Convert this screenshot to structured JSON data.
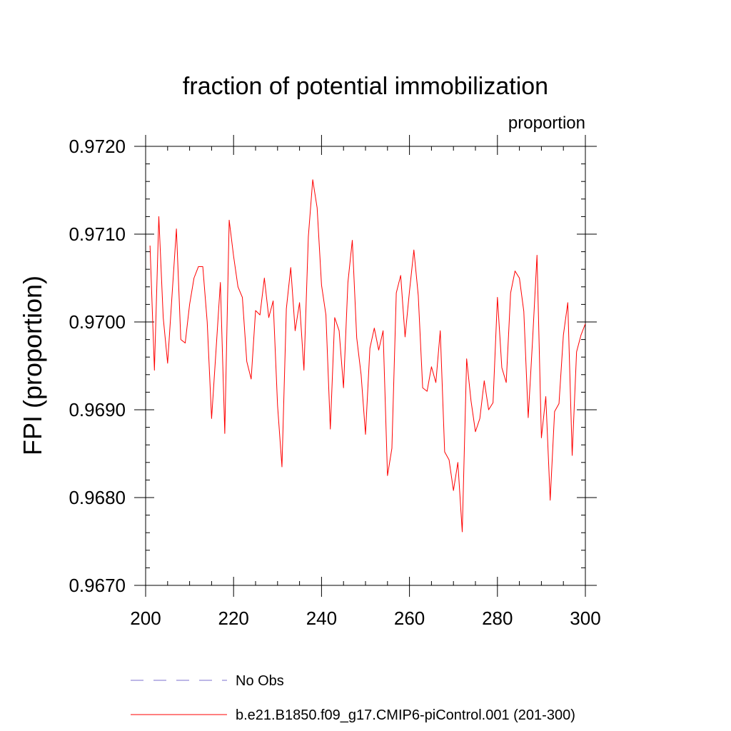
{
  "chart_data": {
    "type": "line",
    "title": "fraction of potential immobilization",
    "units_label": "proportion",
    "xlabel": "",
    "ylabel": "FPI  (proportion)",
    "xlim": [
      200,
      300
    ],
    "ylim": [
      0.967,
      0.972
    ],
    "x_ticks": [
      200,
      220,
      240,
      260,
      280,
      300
    ],
    "x_tick_labels": [
      "200",
      "220",
      "240",
      "260",
      "280",
      "300"
    ],
    "y_ticks": [
      0.967,
      0.968,
      0.969,
      0.97,
      0.971,
      0.972
    ],
    "y_tick_labels": [
      "0.9670",
      "0.9680",
      "0.9690",
      "0.9700",
      "0.9710",
      "0.9720"
    ],
    "grid": false,
    "legend_position": "bottom",
    "series": [
      {
        "name": "b.e21.B1850.f09_g17.CMIP6-piControl.001 (201-300)",
        "color": "#ff0000",
        "style": "solid",
        "x_start": 201,
        "x_step": 1,
        "values": [
          0.97087,
          0.96945,
          0.9712,
          0.97005,
          0.96953,
          0.9703,
          0.97106,
          0.9698,
          0.96976,
          0.9702,
          0.9705,
          0.97063,
          0.97063,
          0.97,
          0.9689,
          0.96967,
          0.97045,
          0.96873,
          0.97116,
          0.97075,
          0.9704,
          0.97028,
          0.96955,
          0.96935,
          0.97013,
          0.97008,
          0.9705,
          0.97005,
          0.97024,
          0.96905,
          0.96835,
          0.97015,
          0.97062,
          0.9699,
          0.97022,
          0.96945,
          0.97097,
          0.97162,
          0.9713,
          0.97042,
          0.97008,
          0.96878,
          0.97005,
          0.9699,
          0.96925,
          0.97045,
          0.97093,
          0.96982,
          0.9694,
          0.96872,
          0.9697,
          0.96993,
          0.96968,
          0.9699,
          0.96825,
          0.96856,
          0.97033,
          0.97053,
          0.96983,
          0.97035,
          0.97082,
          0.9703,
          0.96925,
          0.96921,
          0.96949,
          0.96931,
          0.9699,
          0.96852,
          0.96843,
          0.96808,
          0.9684,
          0.96761,
          0.96958,
          0.9691,
          0.96875,
          0.9689,
          0.96933,
          0.969,
          0.96908,
          0.97028,
          0.96948,
          0.96931,
          0.97033,
          0.97058,
          0.9705,
          0.97012,
          0.96891,
          0.9698,
          0.97076,
          0.96868,
          0.96915,
          0.96797,
          0.96898,
          0.96907,
          0.96985,
          0.97022,
          0.96848,
          0.96966,
          0.96985,
          0.96998
        ]
      }
    ],
    "legend": [
      {
        "label": "No Obs",
        "color": "#7b6fcf",
        "style": "dashed"
      },
      {
        "label": "b.e21.B1850.f09_g17.CMIP6-piControl.001 (201-300)",
        "color": "#ff0000",
        "style": "solid"
      }
    ]
  }
}
